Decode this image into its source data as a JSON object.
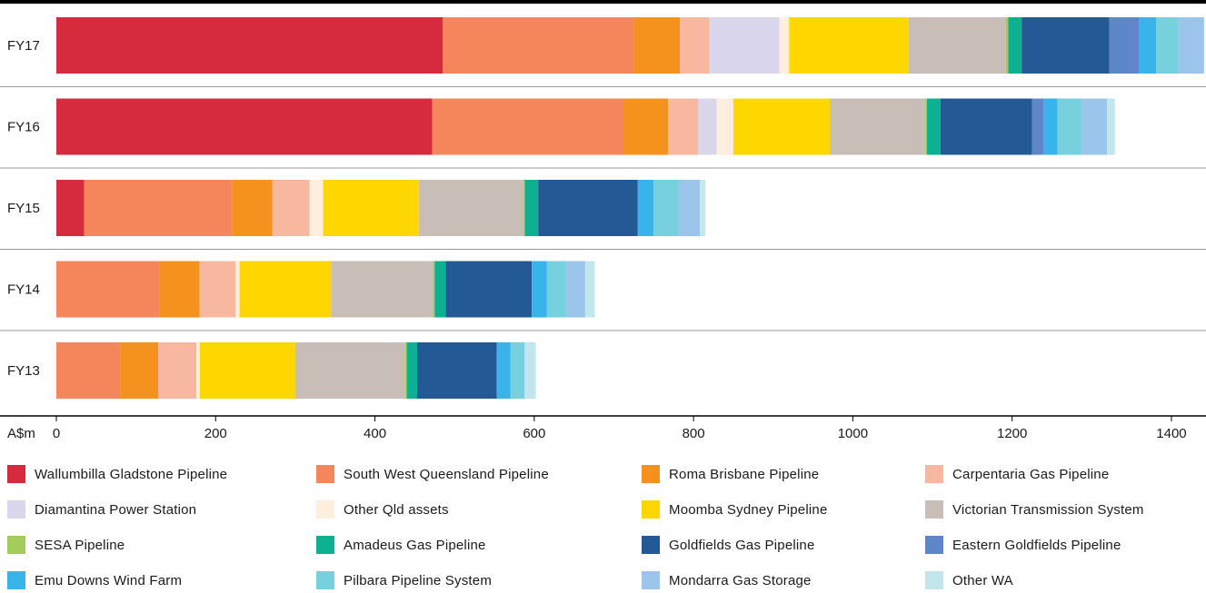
{
  "chart_data": {
    "type": "bar",
    "orientation": "horizontal",
    "stacked": true,
    "xlabel": "A$m",
    "xlim": [
      0,
      1450
    ],
    "ticks": [
      0,
      200,
      400,
      600,
      800,
      1000,
      1200,
      1400
    ],
    "tick_labels": [
      "0",
      "200",
      "400",
      "600",
      "800",
      "1000",
      "1200",
      "1400"
    ],
    "categories": [
      "FY17",
      "FY16",
      "FY15",
      "FY14",
      "FY13"
    ],
    "legend_position": "bottom",
    "series": [
      {
        "name": "Wallumbilla Gladstone Pipeline",
        "color": "#d62b3c",
        "values": [
          485,
          472,
          35,
          0,
          0
        ]
      },
      {
        "name": "South West Queensland Pipeline",
        "color": "#f5855a",
        "values": [
          240,
          240,
          186,
          130,
          80
        ]
      },
      {
        "name": "Roma Brisbane Pipeline",
        "color": "#f5921e",
        "values": [
          58,
          56,
          50,
          50,
          48
        ]
      },
      {
        "name": "Carpentaria Gas Pipeline",
        "color": "#f8b8a0",
        "values": [
          37,
          38,
          47,
          45,
          48
        ]
      },
      {
        "name": "Diamantina Power Station",
        "color": "#dad7ec",
        "values": [
          88,
          23,
          0,
          0,
          0
        ]
      },
      {
        "name": "Other Qld assets",
        "color": "#fdeedd",
        "values": [
          12,
          21,
          17,
          5,
          4
        ]
      },
      {
        "name": "Moomba Sydney Pipeline",
        "color": "#fed700",
        "values": [
          150,
          121,
          120,
          115,
          120
        ]
      },
      {
        "name": "Victorian Transmission System",
        "color": "#c9bdb7",
        "values": [
          122,
          120,
          132,
          128,
          138
        ]
      },
      {
        "name": "SESA Pipeline",
        "color": "#a3cd5b",
        "values": [
          3,
          2,
          1,
          2,
          2
        ]
      },
      {
        "name": "Amadeus Gas Pipeline",
        "color": "#0db090",
        "values": [
          17,
          17,
          17,
          14,
          13
        ]
      },
      {
        "name": "Goldfields Gas Pipeline",
        "color": "#235a96",
        "values": [
          110,
          115,
          125,
          108,
          100
        ]
      },
      {
        "name": "Eastern Goldfields Pipeline",
        "color": "#5d87c9",
        "values": [
          37,
          15,
          0,
          0,
          0
        ]
      },
      {
        "name": "Emu Downs Wind Farm",
        "color": "#39b4ea",
        "values": [
          22,
          17,
          20,
          19,
          17
        ]
      },
      {
        "name": "Pilbara Pipeline System",
        "color": "#77d0dd",
        "values": [
          28,
          30,
          31,
          24,
          18
        ]
      },
      {
        "name": "Mondarra Gas Storage",
        "color": "#9bc5ea",
        "values": [
          32,
          32,
          27,
          24,
          0
        ]
      },
      {
        "name": "Other WA",
        "color": "#c1e6ec",
        "values": [
          0,
          10,
          7,
          12,
          14
        ]
      }
    ]
  }
}
